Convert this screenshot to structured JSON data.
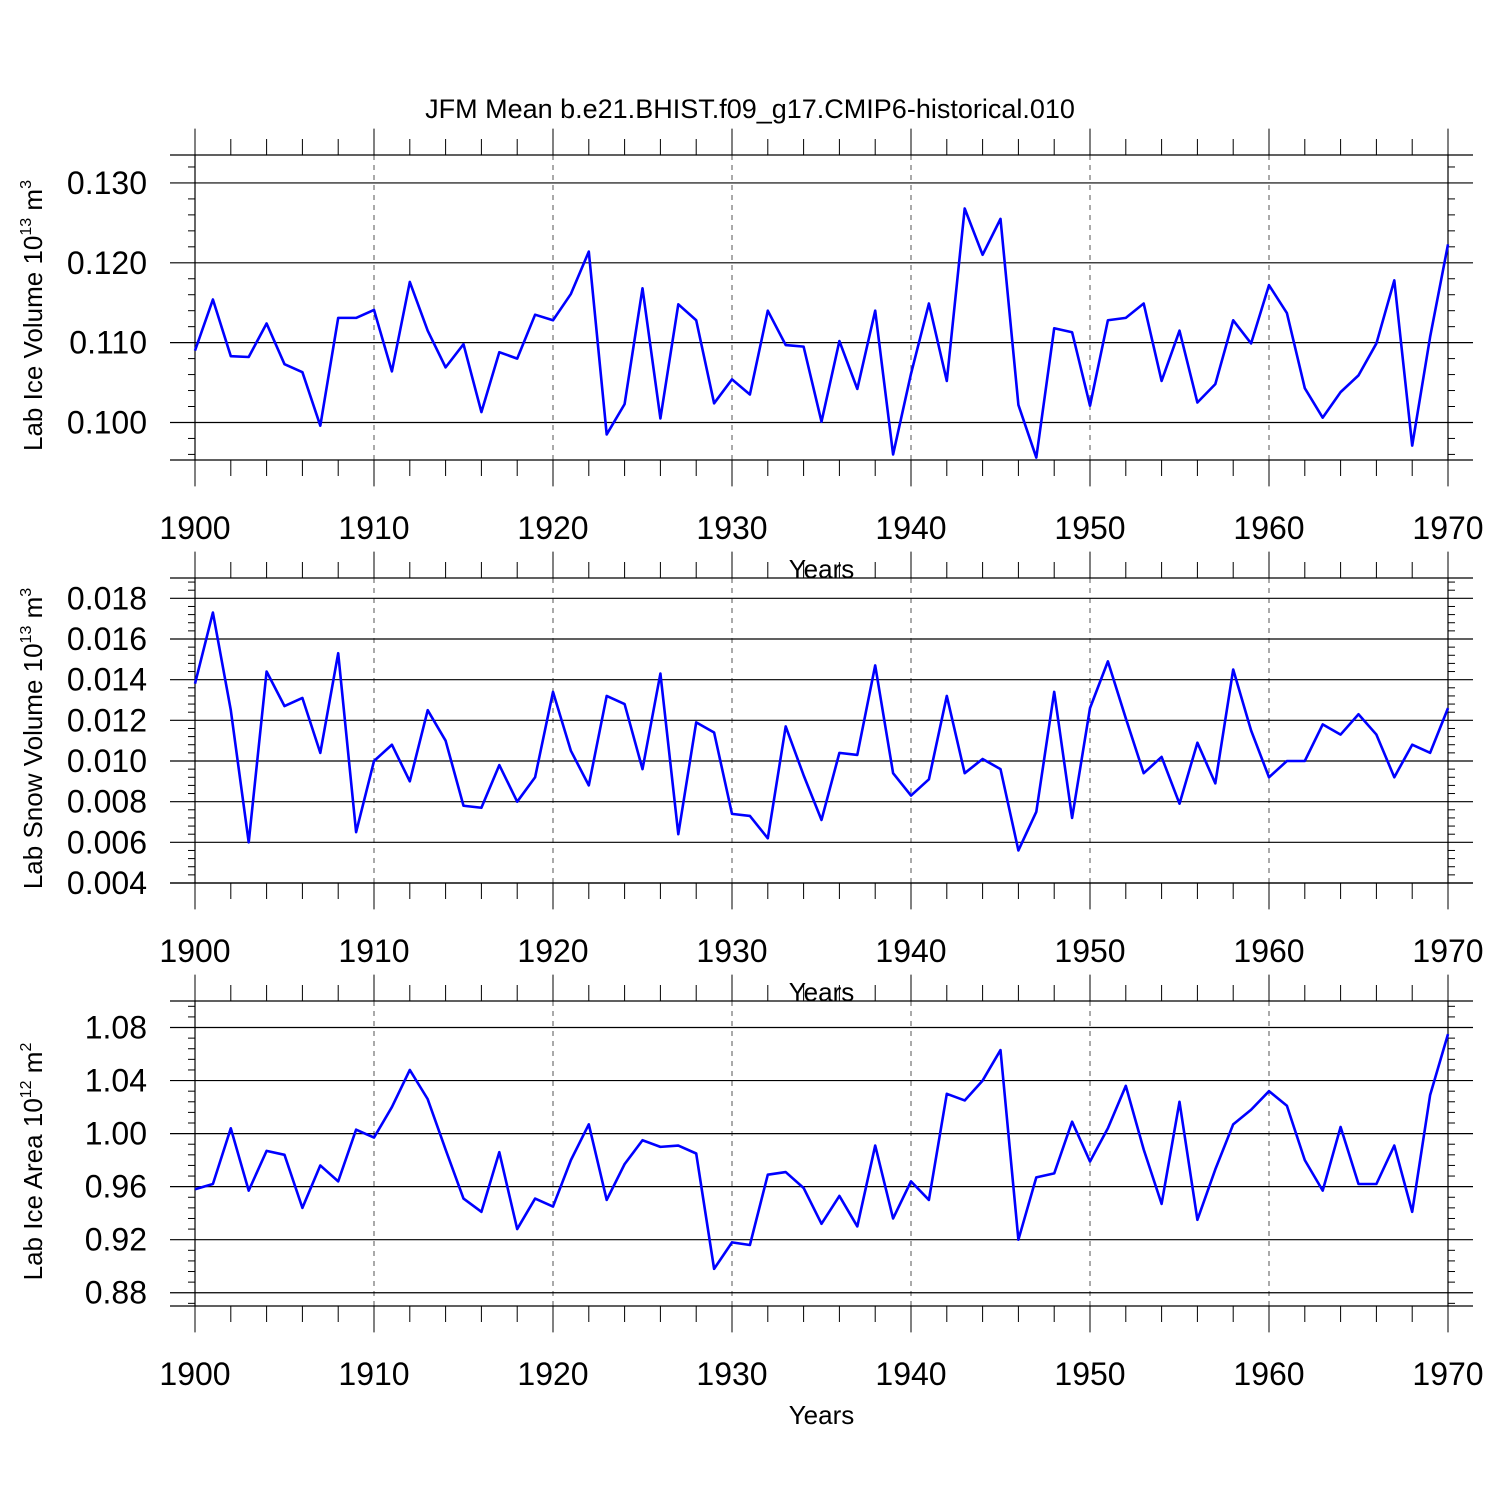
{
  "title": "JFM Mean b.e21.BHIST.f09_g17.CMIP6-historical.010",
  "line_color": "#0000ff",
  "chart_data": [
    {
      "type": "line",
      "name": "lab-ice-volume",
      "ylabel": "Lab Ice Volume 10",
      "ylabel_exp": "13",
      "ylabel_unit": " m",
      "ylabel_unit_exp": "3",
      "xlabel": "Years",
      "xlim": [
        1900,
        1970
      ],
      "ylim": [
        0.0953,
        0.1335
      ],
      "yticks": [
        0.1,
        0.11,
        0.12,
        0.13
      ],
      "ytick_labels": [
        "0.100",
        "0.110",
        "0.120",
        "0.130"
      ],
      "xticks": [
        1900,
        1910,
        1920,
        1930,
        1940,
        1950,
        1960,
        1970
      ],
      "xtick_labels": [
        "1900",
        "1910",
        "1920",
        "1930",
        "1940",
        "1950",
        "1960",
        "1970"
      ],
      "x_start": 1900,
      "values": [
        0.109,
        0.1154,
        0.1083,
        0.1082,
        0.1124,
        0.1073,
        0.1063,
        0.0996,
        0.1131,
        0.1131,
        0.1141,
        0.1064,
        0.1176,
        0.1115,
        0.1069,
        0.1098,
        0.1013,
        0.1088,
        0.108,
        0.1135,
        0.1128,
        0.1161,
        0.1214,
        0.0985,
        0.1023,
        0.1168,
        0.1005,
        0.1148,
        0.1128,
        0.1024,
        0.1054,
        0.1035,
        0.114,
        0.1097,
        0.1095,
        0.1001,
        0.1102,
        0.1042,
        0.114,
        0.096,
        0.1061,
        0.1149,
        0.1052,
        0.1268,
        0.121,
        0.1255,
        0.1022,
        0.0956,
        0.1118,
        0.1113,
        0.1021,
        0.1128,
        0.1131,
        0.1149,
        0.1052,
        0.1115,
        0.1025,
        0.1048,
        0.1128,
        0.1099,
        0.1172,
        0.1137,
        0.1043,
        0.1006,
        0.1038,
        0.1059,
        0.1099,
        0.1178,
        0.0971,
        0.1107,
        0.1223
      ]
    },
    {
      "type": "line",
      "name": "lab-snow-volume",
      "ylabel": "Lab Snow Volume 10",
      "ylabel_exp": "13",
      "ylabel_unit": " m",
      "ylabel_unit_exp": "3",
      "xlabel": "Years",
      "xlim": [
        1900,
        1970
      ],
      "ylim": [
        0.004,
        0.019
      ],
      "yticks": [
        0.004,
        0.006,
        0.008,
        0.01,
        0.012,
        0.014,
        0.016,
        0.018
      ],
      "ytick_labels": [
        "0.004",
        "0.006",
        "0.008",
        "0.010",
        "0.012",
        "0.014",
        "0.016",
        "0.018"
      ],
      "xticks": [
        1900,
        1910,
        1920,
        1930,
        1940,
        1950,
        1960,
        1970
      ],
      "xtick_labels": [
        "1900",
        "1910",
        "1920",
        "1930",
        "1940",
        "1950",
        "1960",
        "1970"
      ],
      "x_start": 1900,
      "values": [
        0.0138,
        0.0173,
        0.0125,
        0.006,
        0.0144,
        0.0127,
        0.0131,
        0.0104,
        0.0153,
        0.0065,
        0.01,
        0.0108,
        0.009,
        0.0125,
        0.011,
        0.0078,
        0.0077,
        0.0098,
        0.008,
        0.0092,
        0.0134,
        0.0105,
        0.0088,
        0.0132,
        0.0128,
        0.0096,
        0.0143,
        0.0064,
        0.0119,
        0.0114,
        0.0074,
        0.0073,
        0.0062,
        0.0117,
        0.0093,
        0.0071,
        0.0104,
        0.0103,
        0.0147,
        0.0094,
        0.0083,
        0.0091,
        0.0132,
        0.0094,
        0.0101,
        0.0096,
        0.0056,
        0.0075,
        0.0134,
        0.0072,
        0.0126,
        0.0149,
        0.0121,
        0.0094,
        0.0102,
        0.0079,
        0.0109,
        0.0089,
        0.0145,
        0.0115,
        0.0092,
        0.01,
        0.01,
        0.0118,
        0.0113,
        0.0123,
        0.0113,
        0.0092,
        0.0108,
        0.0104,
        0.0126
      ]
    },
    {
      "type": "line",
      "name": "lab-ice-area",
      "ylabel": "Lab Ice Area 10",
      "ylabel_exp": "12",
      "ylabel_unit": " m",
      "ylabel_unit_exp": "2",
      "xlabel": "Years",
      "xlim": [
        1900,
        1970
      ],
      "ylim": [
        0.87,
        1.1
      ],
      "yticks": [
        0.88,
        0.92,
        0.96,
        1.0,
        1.04,
        1.08
      ],
      "ytick_labels": [
        "0.88",
        "0.92",
        "0.96",
        "1.00",
        "1.04",
        "1.08"
      ],
      "xticks": [
        1900,
        1910,
        1920,
        1930,
        1940,
        1950,
        1960,
        1970
      ],
      "xtick_labels": [
        "1900",
        "1910",
        "1920",
        "1930",
        "1940",
        "1950",
        "1960",
        "1970"
      ],
      "x_start": 1900,
      "values": [
        0.958,
        0.962,
        1.004,
        0.957,
        0.987,
        0.984,
        0.944,
        0.976,
        0.964,
        1.003,
        0.997,
        1.02,
        1.048,
        1.026,
        0.988,
        0.951,
        0.941,
        0.986,
        0.928,
        0.951,
        0.945,
        0.98,
        1.007,
        0.95,
        0.977,
        0.995,
        0.99,
        0.991,
        0.985,
        0.898,
        0.918,
        0.916,
        0.969,
        0.971,
        0.959,
        0.932,
        0.953,
        0.93,
        0.991,
        0.936,
        0.964,
        0.95,
        1.03,
        1.025,
        1.04,
        1.063,
        0.92,
        0.967,
        0.97,
        1.009,
        0.979,
        1.004,
        1.036,
        0.988,
        0.947,
        1.024,
        0.935,
        0.973,
        1.007,
        1.018,
        1.032,
        1.021,
        0.98,
        0.957,
        1.005,
        0.962,
        0.962,
        0.991,
        0.941,
        1.029,
        1.075
      ]
    }
  ]
}
